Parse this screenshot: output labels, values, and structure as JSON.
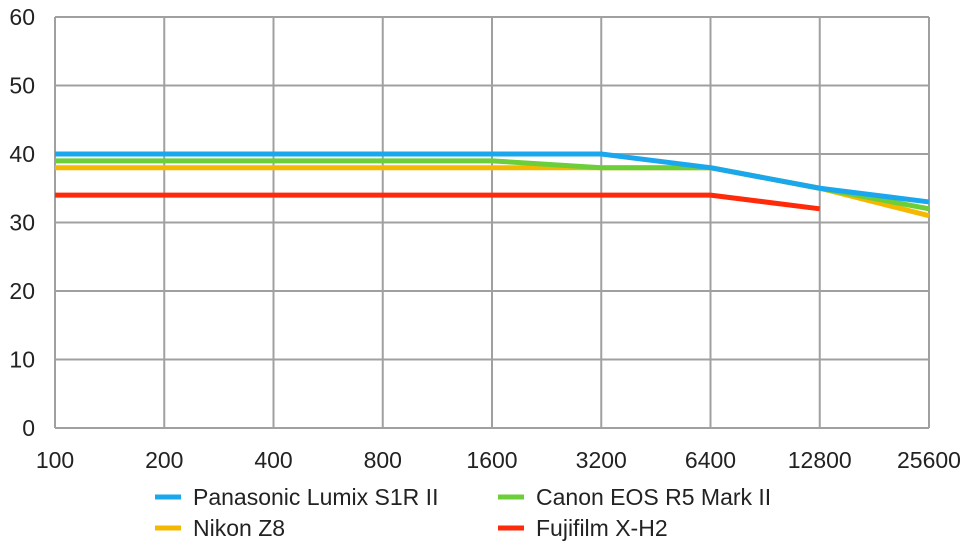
{
  "chart_data": {
    "type": "line",
    "title": "",
    "xlabel": "",
    "ylabel": "",
    "categories": [
      "100",
      "200",
      "400",
      "800",
      "1600",
      "3200",
      "6400",
      "12800",
      "25600"
    ],
    "ylim": [
      0,
      60
    ],
    "yticks": [
      0,
      10,
      20,
      30,
      40,
      50,
      60
    ],
    "grid": true,
    "legend_placement": "bottom",
    "series": [
      {
        "name": "Panasonic Lumix S1R II",
        "color": "#1aa7ee",
        "values": [
          40,
          40,
          40,
          40,
          40,
          40,
          38,
          35,
          33
        ]
      },
      {
        "name": "Canon EOS R5 Mark II",
        "color": "#6ccf3a",
        "values": [
          39,
          39,
          39,
          39,
          39,
          38,
          38,
          35,
          32
        ]
      },
      {
        "name": "Nikon Z8",
        "color": "#f5b800",
        "values": [
          38,
          38,
          38,
          38,
          38,
          38,
          38,
          35,
          31
        ]
      },
      {
        "name": "Fujifilm X-H2",
        "color": "#ff2a0a",
        "values": [
          34,
          34,
          34,
          34,
          34,
          34,
          34,
          32,
          null
        ]
      }
    ]
  }
}
